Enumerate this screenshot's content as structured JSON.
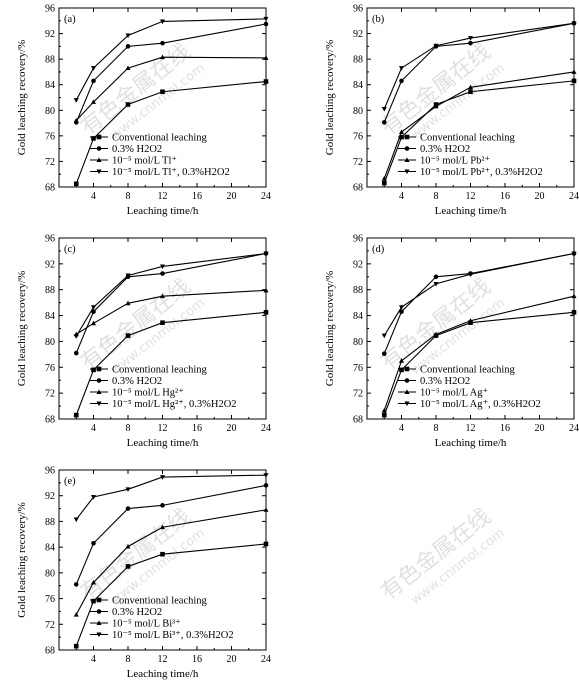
{
  "chart_data": [
    {
      "type": "line",
      "panel_label": "(a)",
      "xlabel": "Leaching time/h",
      "ylabel": "Gold leaching recovery/%",
      "x": [
        2,
        4,
        8,
        12,
        24
      ],
      "xticks": [
        4,
        8,
        12,
        16,
        20,
        24
      ],
      "xlim": [
        0,
        24
      ],
      "yticks": [
        68,
        72,
        76,
        80,
        84,
        88,
        92,
        96
      ],
      "ylim": [
        68,
        96
      ],
      "legend_position": "lower-right",
      "series": [
        {
          "name": "Conventional leaching",
          "marker": "square",
          "values": [
            68.5,
            75.6,
            80.9,
            82.9,
            84.5
          ]
        },
        {
          "name": "0.3% H2O2",
          "marker": "circle",
          "values": [
            78.1,
            84.6,
            90.0,
            90.5,
            93.5
          ]
        },
        {
          "name": "10⁻⁵ mol/L Tl⁺",
          "marker": "triangle-up",
          "values": [
            78.4,
            81.3,
            86.6,
            88.3,
            88.2
          ]
        },
        {
          "name": "10⁻⁵ mol/L Tl⁺, 0.3%H2O2",
          "marker": "triangle-down",
          "values": [
            81.6,
            86.6,
            91.7,
            93.9,
            94.3
          ]
        }
      ]
    },
    {
      "type": "line",
      "panel_label": "(b)",
      "xlabel": "Leaching time/h",
      "ylabel": "Gold leaching recovery/%",
      "x": [
        2,
        4,
        8,
        12,
        24
      ],
      "xticks": [
        4,
        8,
        12,
        16,
        20,
        24
      ],
      "xlim": [
        0,
        24
      ],
      "yticks": [
        68,
        72,
        76,
        80,
        84,
        88,
        92,
        96
      ],
      "ylim": [
        68,
        96
      ],
      "legend_position": "lower-right",
      "series": [
        {
          "name": "Conventional leaching",
          "marker": "square",
          "values": [
            68.6,
            75.8,
            80.9,
            82.9,
            84.6
          ]
        },
        {
          "name": "0.3% H2O2",
          "marker": "circle",
          "values": [
            78.1,
            84.6,
            90.0,
            90.5,
            93.6
          ]
        },
        {
          "name": "10⁻⁵ mol/L Pb²⁺",
          "marker": "triangle-up",
          "values": [
            69.3,
            76.6,
            80.6,
            83.6,
            86.0
          ]
        },
        {
          "name": "10⁻⁵ mol/L Pb²⁺, 0.3%H2O2",
          "marker": "triangle-down",
          "values": [
            80.2,
            86.6,
            90.1,
            91.3,
            93.6
          ]
        }
      ]
    },
    {
      "type": "line",
      "panel_label": "(c)",
      "xlabel": "Leaching time/h",
      "ylabel": "Gold leaching recovery/%",
      "x": [
        2,
        4,
        8,
        12,
        24
      ],
      "xticks": [
        4,
        8,
        12,
        16,
        20,
        24
      ],
      "xlim": [
        0,
        24
      ],
      "yticks": [
        68,
        72,
        76,
        80,
        84,
        88,
        92,
        96
      ],
      "ylim": [
        68,
        96
      ],
      "legend_position": "lower-right",
      "series": [
        {
          "name": "Conventional leaching",
          "marker": "square",
          "values": [
            68.6,
            75.6,
            80.9,
            82.9,
            84.5
          ]
        },
        {
          "name": "0.3% H2O2",
          "marker": "circle",
          "values": [
            78.2,
            84.6,
            90.0,
            90.5,
            93.6
          ]
        },
        {
          "name": "10⁻⁵ mol/L Hg²⁺",
          "marker": "triangle-up",
          "values": [
            81.1,
            82.8,
            85.9,
            87.0,
            87.9
          ]
        },
        {
          "name": "10⁻⁵ mol/L Hg²⁺, 0.3%H2O2",
          "marker": "triangle-down",
          "values": [
            80.8,
            85.3,
            90.2,
            91.6,
            93.6
          ]
        }
      ]
    },
    {
      "type": "line",
      "panel_label": "(d)",
      "xlabel": "Leaching time/h",
      "ylabel": "Gold leaching recovery/%",
      "x": [
        2,
        4,
        8,
        12,
        24
      ],
      "xticks": [
        4,
        8,
        12,
        16,
        20,
        24
      ],
      "xlim": [
        0,
        24
      ],
      "yticks": [
        68,
        72,
        76,
        80,
        84,
        88,
        92,
        96
      ],
      "ylim": [
        68,
        96
      ],
      "legend_position": "lower-right",
      "series": [
        {
          "name": "Conventional leaching",
          "marker": "square",
          "values": [
            68.6,
            75.6,
            80.9,
            82.9,
            84.5
          ]
        },
        {
          "name": "0.3% H2O2",
          "marker": "circle",
          "values": [
            78.1,
            84.6,
            90.0,
            90.5,
            93.6
          ]
        },
        {
          "name": "10⁻⁵ mol/L Ag⁺",
          "marker": "triangle-up",
          "values": [
            69.3,
            77.0,
            81.1,
            83.2,
            87.0
          ]
        },
        {
          "name": "10⁻⁵ mol/L Ag⁺, 0.3%H2O2",
          "marker": "triangle-down",
          "values": [
            80.9,
            85.3,
            88.9,
            90.4,
            93.6
          ]
        }
      ]
    },
    {
      "type": "line",
      "panel_label": "(e)",
      "xlabel": "Leaching time/h",
      "ylabel": "Gold leaching recovery/%",
      "x": [
        2,
        4,
        8,
        12,
        24
      ],
      "xticks": [
        4,
        8,
        12,
        16,
        20,
        24
      ],
      "xlim": [
        0,
        24
      ],
      "yticks": [
        68,
        72,
        76,
        80,
        84,
        88,
        92,
        96
      ],
      "ylim": [
        68,
        96
      ],
      "legend_position": "lower-right",
      "series": [
        {
          "name": "Conventional leaching",
          "marker": "square",
          "values": [
            68.6,
            75.6,
            81.0,
            82.9,
            84.5
          ]
        },
        {
          "name": "0.3% H2O2",
          "marker": "circle",
          "values": [
            78.2,
            84.6,
            90.0,
            90.5,
            93.6
          ]
        },
        {
          "name": "10⁻⁵ mol/L Bi³⁺",
          "marker": "triangle-up",
          "values": [
            73.5,
            78.5,
            84.1,
            87.1,
            89.8
          ]
        },
        {
          "name": "10⁻⁵ mol/L Bi³⁺, 0.3%H2O2",
          "marker": "triangle-down",
          "values": [
            88.3,
            91.8,
            93.0,
            94.9,
            95.2
          ]
        }
      ]
    }
  ],
  "watermark": {
    "text_cn": "有色金属在线",
    "text_url": "www.cnnmol.com"
  }
}
